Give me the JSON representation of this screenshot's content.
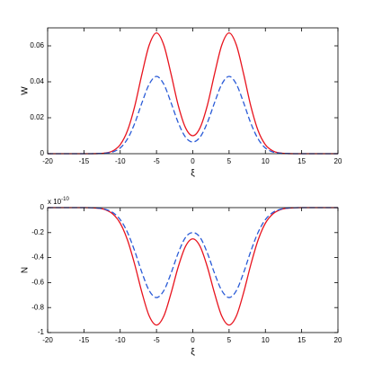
{
  "chart_data": [
    {
      "type": "line",
      "xlabel": "ξ",
      "ylabel": "W",
      "x": [
        -20,
        -19,
        -18,
        -17,
        -16,
        -15,
        -14,
        -13,
        -12,
        -11,
        -10,
        -9,
        -8,
        -7,
        -6,
        -5,
        -4,
        -3,
        -2,
        -1,
        0,
        1,
        2,
        3,
        4,
        5,
        6,
        7,
        8,
        9,
        10,
        11,
        12,
        13,
        14,
        15,
        16,
        17,
        18,
        19,
        20
      ],
      "series": [
        {
          "color": "#e8141e",
          "style": "solid",
          "values": [
            0,
            0,
            0,
            0,
            0,
            0,
            0,
            0.0001,
            0.0004,
            0.0016,
            0.005,
            0.0128,
            0.0264,
            0.0444,
            0.0605,
            0.0672,
            0.0605,
            0.0444,
            0.0268,
            0.0144,
            0.01,
            0.0144,
            0.0268,
            0.0444,
            0.0605,
            0.0672,
            0.0605,
            0.0444,
            0.0264,
            0.0128,
            0.005,
            0.0016,
            0.0004,
            0.0001,
            0,
            0,
            0,
            0,
            0,
            0,
            0
          ]
        },
        {
          "color": "#2a5bd7",
          "style": "dashed",
          "values": [
            0,
            0,
            0,
            0,
            0,
            0,
            0,
            0.0001,
            0.0003,
            0.001,
            0.0032,
            0.0082,
            0.0169,
            0.0284,
            0.0387,
            0.043,
            0.0387,
            0.0284,
            0.0172,
            0.0092,
            0.0065,
            0.0092,
            0.0172,
            0.0284,
            0.0387,
            0.043,
            0.0387,
            0.0284,
            0.0169,
            0.0082,
            0.0032,
            0.001,
            0.0003,
            0.0001,
            0,
            0,
            0,
            0,
            0,
            0,
            0
          ]
        }
      ],
      "xlim": [
        -20,
        20
      ],
      "xticks": [
        -20,
        -15,
        -10,
        -5,
        0,
        5,
        10,
        15,
        20
      ],
      "ylim": [
        0,
        0.07
      ],
      "yticks": [
        0,
        0.02,
        0.04,
        0.06
      ]
    },
    {
      "type": "line",
      "xlabel": "ξ",
      "ylabel": "N",
      "y_scale_base": "x 10",
      "y_scale_exponent": "-10",
      "x": [
        -20,
        -19,
        -18,
        -17,
        -16,
        -15,
        -14,
        -13,
        -12,
        -11,
        -10,
        -9,
        -8,
        -7,
        -6,
        -5,
        -4,
        -3,
        -2,
        -1,
        0,
        1,
        2,
        3,
        4,
        5,
        6,
        7,
        8,
        9,
        10,
        11,
        12,
        13,
        14,
        15,
        16,
        17,
        18,
        19,
        20
      ],
      "series": [
        {
          "color": "#e8141e",
          "style": "solid",
          "values": [
            0,
            0,
            0,
            0,
            0,
            0,
            -0.001,
            -0.005,
            -0.018,
            -0.052,
            -0.125,
            -0.259,
            -0.455,
            -0.681,
            -0.868,
            -0.94,
            -0.869,
            -0.686,
            -0.473,
            -0.31,
            -0.25,
            -0.31,
            -0.473,
            -0.686,
            -0.869,
            -0.94,
            -0.868,
            -0.681,
            -0.455,
            -0.259,
            -0.125,
            -0.052,
            -0.018,
            -0.005,
            -0.001,
            0,
            0,
            0,
            0,
            0,
            0
          ]
        },
        {
          "color": "#2a5bd7",
          "style": "dashed",
          "values": [
            0,
            0,
            0,
            0,
            0,
            0,
            -0.001,
            -0.004,
            -0.014,
            -0.04,
            -0.096,
            -0.198,
            -0.348,
            -0.521,
            -0.665,
            -0.72,
            -0.665,
            -0.526,
            -0.362,
            -0.238,
            -0.2,
            -0.238,
            -0.362,
            -0.526,
            -0.665,
            -0.72,
            -0.665,
            -0.521,
            -0.348,
            -0.198,
            -0.096,
            -0.04,
            -0.014,
            -0.004,
            -0.001,
            0,
            0,
            0,
            0,
            0,
            0
          ]
        }
      ],
      "xlim": [
        -20,
        20
      ],
      "xticks": [
        -20,
        -15,
        -10,
        -5,
        0,
        5,
        10,
        15,
        20
      ],
      "ylim": [
        -1,
        0
      ],
      "yticks": [
        -1,
        -0.8,
        -0.6,
        -0.4,
        -0.2,
        0
      ]
    }
  ]
}
